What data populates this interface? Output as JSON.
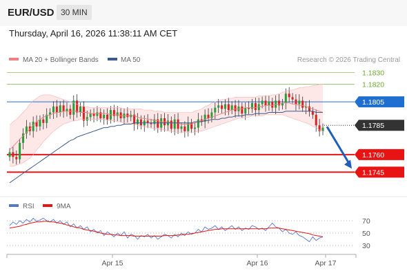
{
  "header": {
    "symbol": "EUR/USD",
    "timeframe": "30 MIN"
  },
  "datetime": "Thursday, April 16, 2026 11:38:11 AM CET",
  "chart_data": [
    {
      "type": "candlestick",
      "legend": [
        {
          "label": "MA 20 + Bollinger Bands",
          "color": "#f08080"
        },
        {
          "label": "MA 50",
          "color": "#3a5a8c"
        }
      ],
      "copyright": "Research © 2026 Trading Central",
      "ylim": [
        1.173,
        1.1835
      ],
      "x_ticks": [
        "Apr 15",
        "Apr 16",
        "Apr 17"
      ],
      "levels": [
        {
          "label": "1.1830",
          "value": 1.183,
          "color": "#8cc15b",
          "style": "thin"
        },
        {
          "label": "1.1820",
          "value": 1.182,
          "color": "#8cc15b",
          "style": "thin"
        },
        {
          "label": "1.1805",
          "value": 1.1805,
          "color": "#1f6fd1",
          "style": "line"
        },
        {
          "label": "1.1785",
          "value": 1.1785,
          "color": "#333333",
          "style": "dotted"
        },
        {
          "label": "1.1760",
          "value": 1.176,
          "color": "#e81313",
          "style": "thick"
        },
        {
          "label": "1.1745",
          "value": 1.1745,
          "color": "#e81313",
          "style": "thick"
        }
      ],
      "closes": [
        1.1762,
        1.1758,
        1.1756,
        1.177,
        1.1778,
        1.1784,
        1.178,
        1.1788,
        1.1784,
        1.179,
        1.1787,
        1.1794,
        1.1796,
        1.1801,
        1.1796,
        1.1802,
        1.1797,
        1.1799,
        1.1794,
        1.1806,
        1.1796,
        1.1801,
        1.1789,
        1.1792,
        1.1795,
        1.1793,
        1.1796,
        1.1791,
        1.1794,
        1.179,
        1.1798,
        1.1793,
        1.1796,
        1.1791,
        1.1795,
        1.1792,
        1.1794,
        1.1786,
        1.179,
        1.1785,
        1.1789,
        1.1787,
        1.1786,
        1.179,
        1.1783,
        1.1791,
        1.1785,
        1.1789,
        1.1782,
        1.179,
        1.1782,
        1.1784,
        1.178,
        1.1787,
        1.1782,
        1.1783,
        1.179,
        1.1788,
        1.1794,
        1.1791,
        1.1796,
        1.18,
        1.1802,
        1.1799,
        1.1803,
        1.1798,
        1.1802,
        1.1797,
        1.1801,
        1.1795,
        1.18,
        1.1799,
        1.1804,
        1.1798,
        1.1803,
        1.1806,
        1.1802,
        1.1805,
        1.18,
        1.1806,
        1.1802,
        1.1804,
        1.1812,
        1.1809,
        1.1807,
        1.1803,
        1.1806,
        1.18,
        1.1801,
        1.1797,
        1.1794,
        1.1785,
        1.178,
        1.1783
      ],
      "ma20": [
        1.1764,
        1.1767,
        1.177,
        1.1773,
        1.1776,
        1.1779,
        1.1782,
        1.1785,
        1.1788,
        1.179,
        1.1792,
        1.1793,
        1.1794,
        1.1795,
        1.1796,
        1.1796,
        1.1797,
        1.1797,
        1.1797,
        1.1797,
        1.1797,
        1.1796,
        1.1796,
        1.1796,
        1.1795,
        1.1795,
        1.1795,
        1.1795,
        1.1795,
        1.1795,
        1.1794,
        1.1794,
        1.1794,
        1.1793,
        1.1793,
        1.1793,
        1.1793,
        1.1793,
        1.1792,
        1.1791,
        1.1791,
        1.179,
        1.179,
        1.1789,
        1.1789,
        1.1788,
        1.1788,
        1.1788,
        1.1787,
        1.1787,
        1.1787,
        1.1786,
        1.1786,
        1.1786,
        1.1786,
        1.1787,
        1.1788,
        1.1789,
        1.179,
        1.1791,
        1.1792,
        1.1793,
        1.1794,
        1.1795,
        1.1796,
        1.1797,
        1.1798,
        1.1799,
        1.1799,
        1.1799,
        1.18,
        1.18,
        1.18,
        1.18,
        1.1801,
        1.1801,
        1.1802,
        1.1802,
        1.1802,
        1.1803,
        1.1803,
        1.1804,
        1.1804,
        1.1804,
        1.1803,
        1.1803,
        1.1802,
        1.1802,
        1.1801,
        1.18,
        1.1799,
        1.1798,
        1.1797,
        1.1796
      ],
      "bb_upper": [
        1.1785,
        1.1788,
        1.179,
        1.1793,
        1.1796,
        1.1799,
        1.1803,
        1.1806,
        1.1808,
        1.181,
        1.1811,
        1.1811,
        1.1811,
        1.181,
        1.1809,
        1.1808,
        1.1807,
        1.1806,
        1.1805,
        1.1804,
        1.1803,
        1.1802,
        1.1801,
        1.1801,
        1.18,
        1.18,
        1.18,
        1.18,
        1.18,
        1.18,
        1.18,
        1.18,
        1.18,
        1.18,
        1.1799,
        1.1799,
        1.1799,
        1.1799,
        1.1799,
        1.1799,
        1.1798,
        1.1798,
        1.1798,
        1.1797,
        1.1797,
        1.1797,
        1.1796,
        1.1796,
        1.1796,
        1.1796,
        1.1796,
        1.1796,
        1.1796,
        1.1796,
        1.1796,
        1.1797,
        1.1798,
        1.1799,
        1.1801,
        1.1802,
        1.1804,
        1.1805,
        1.1806,
        1.1807,
        1.1807,
        1.1808,
        1.1808,
        1.1809,
        1.1809,
        1.1809,
        1.1809,
        1.1809,
        1.1809,
        1.1809,
        1.181,
        1.181,
        1.181,
        1.181,
        1.1811,
        1.1811,
        1.1812,
        1.1813,
        1.1814,
        1.1815,
        1.1815,
        1.1816,
        1.1817,
        1.1817,
        1.1818,
        1.1818,
        1.1819,
        1.1819,
        1.182,
        1.182
      ],
      "bb_lower": [
        1.175,
        1.175,
        1.1751,
        1.1752,
        1.1753,
        1.1755,
        1.1757,
        1.176,
        1.1764,
        1.1767,
        1.1771,
        1.1774,
        1.1777,
        1.178,
        1.1782,
        1.1784,
        1.1786,
        1.1787,
        1.1788,
        1.1789,
        1.1789,
        1.179,
        1.179,
        1.179,
        1.179,
        1.179,
        1.179,
        1.179,
        1.179,
        1.1789,
        1.1789,
        1.1789,
        1.1788,
        1.1788,
        1.1787,
        1.1787,
        1.1786,
        1.1786,
        1.1785,
        1.1784,
        1.1784,
        1.1783,
        1.1783,
        1.1782,
        1.1782,
        1.1781,
        1.1781,
        1.178,
        1.178,
        1.1779,
        1.1779,
        1.1779,
        1.1779,
        1.1779,
        1.1779,
        1.1779,
        1.178,
        1.178,
        1.1781,
        1.1782,
        1.1783,
        1.1784,
        1.1785,
        1.1786,
        1.1787,
        1.1788,
        1.1789,
        1.179,
        1.1791,
        1.1791,
        1.1792,
        1.1792,
        1.1793,
        1.1793,
        1.1793,
        1.1793,
        1.1794,
        1.1794,
        1.1794,
        1.1794,
        1.1794,
        1.1794,
        1.1793,
        1.1792,
        1.1791,
        1.179,
        1.1789,
        1.1788,
        1.1787,
        1.1786,
        1.1784,
        1.1783,
        1.1781,
        1.178
      ],
      "ma50": [
        1.1736,
        1.1738,
        1.174,
        1.1742,
        1.1744,
        1.1746,
        1.1748,
        1.175,
        1.1752,
        1.1754,
        1.1756,
        1.1758,
        1.176,
        1.1762,
        1.1764,
        1.1766,
        1.1768,
        1.177,
        1.1772,
        1.1773,
        1.1775,
        1.1776,
        1.1777,
        1.1778,
        1.1779,
        1.178,
        1.1781,
        1.1782,
        1.1783,
        1.1783,
        1.1784,
        1.1784,
        1.1785,
        1.1785,
        1.1786,
        1.1786,
        1.1786,
        1.1787,
        1.1787,
        1.1787,
        1.1787,
        1.1787,
        1.1787,
        1.1787,
        1.1787,
        1.1787,
        1.1787,
        1.1787,
        1.1787,
        1.1787,
        1.1787,
        1.1787,
        1.1787,
        1.1787,
        1.1787,
        1.1788,
        1.1788,
        1.1788,
        1.1789,
        1.1789,
        1.179,
        1.179,
        1.179,
        1.1791,
        1.1791,
        1.1792,
        1.1792,
        1.1793,
        1.1793,
        1.1793,
        1.1794,
        1.1794,
        1.1794,
        1.1795,
        1.1795,
        1.1795,
        1.1795,
        1.1796,
        1.1796,
        1.1796,
        1.1796,
        1.1796,
        1.1797,
        1.1797,
        1.1797,
        1.1797,
        1.1797,
        1.1797,
        1.1797,
        1.1797,
        1.1797,
        1.1796,
        1.1796,
        1.1796
      ],
      "forecast_arrow": {
        "from": 1.1785,
        "to": 1.1748
      }
    },
    {
      "type": "line",
      "legend": [
        {
          "label": "RSI",
          "color": "#5577cc"
        },
        {
          "label": "9MA",
          "color": "#e81313"
        }
      ],
      "ylim": [
        20,
        80
      ],
      "y_ticks": [
        "70",
        "50",
        "30"
      ],
      "rsi": [
        62,
        68,
        64,
        70,
        66,
        72,
        68,
        74,
        69,
        71,
        74,
        70,
        68,
        72,
        66,
        70,
        64,
        68,
        60,
        65,
        58,
        62,
        56,
        60,
        52,
        56,
        50,
        54,
        46,
        52,
        48,
        44,
        50,
        46,
        52,
        42,
        48,
        46,
        40,
        46,
        44,
        48,
        42,
        46,
        40,
        44,
        48,
        46,
        42,
        48,
        44,
        50,
        46,
        52,
        48,
        50,
        56,
        52,
        60,
        56,
        58,
        62,
        56,
        60,
        54,
        58,
        62,
        56,
        60,
        54,
        58,
        56,
        62,
        60,
        56,
        58,
        54,
        60,
        66,
        60,
        58,
        52,
        56,
        50,
        48,
        52,
        46,
        44,
        40,
        36,
        44,
        38,
        42,
        44
      ],
      "ma9": [
        58,
        59,
        60,
        61,
        63,
        64,
        66,
        67,
        68,
        68,
        69,
        69,
        68,
        68,
        67,
        66,
        65,
        63,
        62,
        60,
        59,
        58,
        56,
        55,
        54,
        53,
        52,
        50,
        49,
        48,
        48,
        47,
        47,
        46,
        46,
        46,
        46,
        45,
        45,
        45,
        45,
        45,
        45,
        45,
        45,
        45,
        46,
        46,
        46,
        46,
        47,
        47,
        48,
        48,
        49,
        50,
        51,
        52,
        53,
        54,
        55,
        56,
        56,
        57,
        57,
        57,
        57,
        57,
        57,
        57,
        57,
        57,
        57,
        57,
        57,
        57,
        57,
        58,
        58,
        58,
        58,
        57,
        56,
        55,
        54,
        53,
        52,
        51,
        50,
        49,
        47,
        46,
        45,
        44
      ]
    }
  ]
}
